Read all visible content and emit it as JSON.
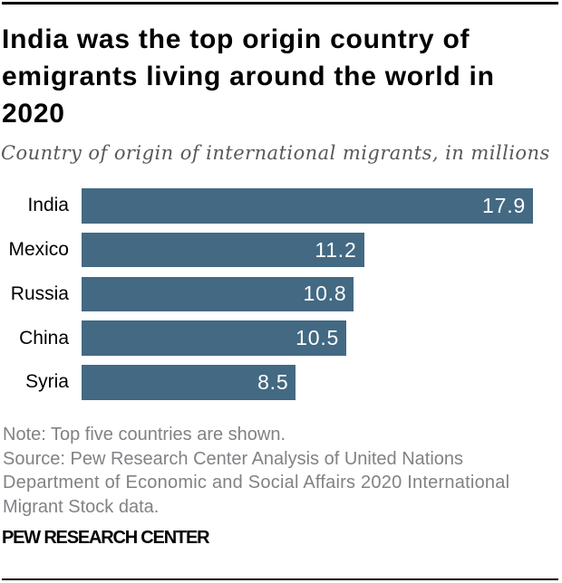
{
  "colors": {
    "bar": "#436983",
    "title_text": "#000000",
    "subtitle_text": "#58585a",
    "note_text": "#808285",
    "value_text": "#ffffff",
    "rule": "#000000"
  },
  "header": {
    "title_lines": [
      "India was the top origin country of",
      "emigrants living around the world in",
      "2020"
    ],
    "subtitle": "Country of origin of international migrants, in millions"
  },
  "chart_data": {
    "type": "bar",
    "orientation": "horizontal",
    "title": "India was the top origin country of emigrants living around the world in 2020",
    "subtitle": "Country of origin of international migrants, in millions",
    "unit": "millions",
    "categories": [
      "India",
      "Mexico",
      "Russia",
      "China",
      "Syria"
    ],
    "values": [
      17.9,
      11.2,
      10.8,
      10.5,
      8.5
    ],
    "xlim": [
      0,
      17.9
    ],
    "bar_color": "#436983",
    "value_label_position": "inside-end",
    "grid": false,
    "legend": false
  },
  "footer": {
    "note_lines": [
      "Note: Top five countries are shown.",
      "Source: Pew Research Center Analysis of United Nations",
      "Department of Economic and Social Affairs 2020 International",
      "Migrant Stock data."
    ],
    "brand": "PEW RESEARCH CENTER"
  }
}
